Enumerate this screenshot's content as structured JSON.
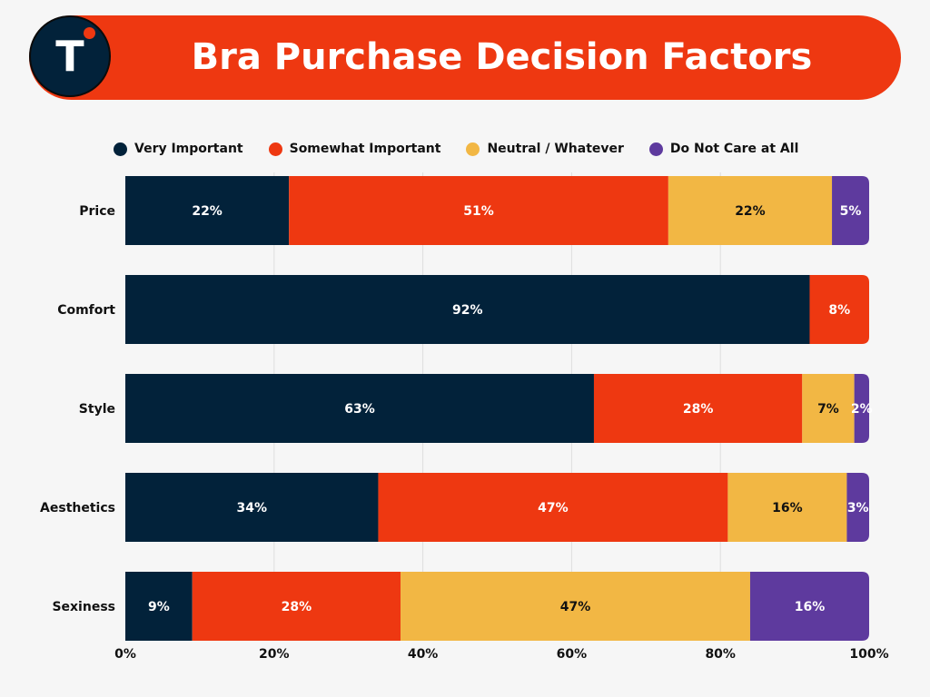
{
  "title": "Bra Purchase Decision Factors",
  "logo": {
    "letter": "T",
    "icon": "brand-logo-icon"
  },
  "colors": {
    "banner": "#ee3811",
    "very_important": "#02223a",
    "somewhat_important": "#ee3811",
    "neutral": "#f2b744",
    "do_not_care": "#5e3a9e"
  },
  "legend": [
    {
      "label": "Very Important",
      "color": "#02223a"
    },
    {
      "label": "Somewhat Important",
      "color": "#ee3811"
    },
    {
      "label": "Neutral / Whatever",
      "color": "#f2b744"
    },
    {
      "label": "Do Not Care at All",
      "color": "#5e3a9e"
    }
  ],
  "chart_data": {
    "type": "bar",
    "orientation": "horizontal",
    "stacked": true,
    "title": "Bra Purchase Decision Factors",
    "categories": [
      "Price",
      "Comfort",
      "Style",
      "Aesthetics",
      "Sexiness"
    ],
    "series": [
      {
        "name": "Very Important",
        "color": "#02223a",
        "values": [
          22,
          92,
          63,
          34,
          9
        ],
        "labels": [
          "22%",
          "92%",
          "63%",
          "34%",
          "9%"
        ]
      },
      {
        "name": "Somewhat Important",
        "color": "#ee3811",
        "values": [
          51,
          8,
          28,
          47,
          28
        ],
        "labels": [
          "51%",
          "8%",
          "28%",
          "47%",
          "28%"
        ]
      },
      {
        "name": "Neutral / Whatever",
        "color": "#f2b744",
        "values": [
          22,
          0,
          7,
          16,
          47
        ],
        "labels": [
          "22%",
          "",
          "7%",
          "16%",
          "47%"
        ]
      },
      {
        "name": "Do Not Care at All",
        "color": "#5e3a9e",
        "values": [
          5,
          0,
          2,
          3,
          16
        ],
        "labels": [
          "5%",
          "",
          "2%",
          "3%",
          "16%"
        ]
      }
    ],
    "xlim": [
      0,
      100
    ],
    "xticks": [
      "0%",
      "20%",
      "40%",
      "60%",
      "80%",
      "100%"
    ],
    "xlabel": "",
    "ylabel": "",
    "grid": true,
    "legend_position": "top"
  }
}
